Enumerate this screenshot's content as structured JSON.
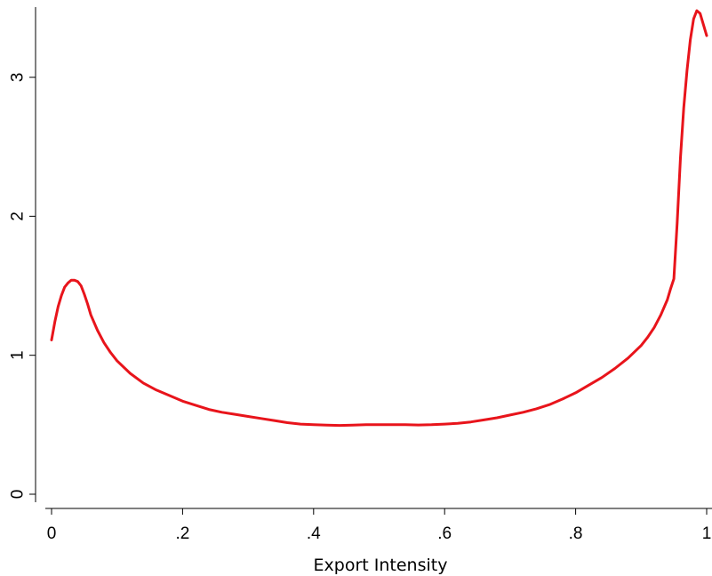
{
  "chart_data": {
    "type": "line",
    "title": "",
    "xlabel": "Export Intensity",
    "ylabel": "",
    "xlim": [
      0,
      1
    ],
    "ylim": [
      0,
      3.5
    ],
    "x_ticks": [
      {
        "value": 0,
        "label": "0"
      },
      {
        "value": 0.2,
        "label": ".2"
      },
      {
        "value": 0.4,
        "label": ".4"
      },
      {
        "value": 0.6,
        "label": ".6"
      },
      {
        "value": 0.8,
        "label": ".8"
      },
      {
        "value": 1,
        "label": "1"
      }
    ],
    "y_ticks": [
      {
        "value": 0,
        "label": "0"
      },
      {
        "value": 1,
        "label": "1"
      },
      {
        "value": 2,
        "label": "2"
      },
      {
        "value": 3,
        "label": "3"
      }
    ],
    "grid": false,
    "legend": "none",
    "series_color": "#e8141b",
    "series": [
      {
        "x": [
          0,
          0.005,
          0.01,
          0.015,
          0.02,
          0.025,
          0.03,
          0.035,
          0.04,
          0.045,
          0.05,
          0.055,
          0.06,
          0.07,
          0.08,
          0.09,
          0.1,
          0.12,
          0.14,
          0.16,
          0.18,
          0.2,
          0.22,
          0.24,
          0.26,
          0.28,
          0.3,
          0.32,
          0.34,
          0.36,
          0.38,
          0.4,
          0.42,
          0.44,
          0.46,
          0.48,
          0.5,
          0.52,
          0.54,
          0.56,
          0.58,
          0.6,
          0.62,
          0.64,
          0.66,
          0.68,
          0.7,
          0.72,
          0.74,
          0.76,
          0.78,
          0.8,
          0.82,
          0.84,
          0.86,
          0.88,
          0.9,
          0.91,
          0.92,
          0.93,
          0.94,
          0.945,
          0.95,
          0.955,
          0.96,
          0.965,
          0.97,
          0.975,
          0.98,
          0.985,
          0.99,
          0.995,
          1
        ],
        "y": [
          1.11,
          1.24,
          1.35,
          1.43,
          1.49,
          1.52,
          1.54,
          1.54,
          1.53,
          1.5,
          1.44,
          1.37,
          1.29,
          1.18,
          1.09,
          1.02,
          0.96,
          0.87,
          0.8,
          0.75,
          0.71,
          0.67,
          0.64,
          0.61,
          0.59,
          0.575,
          0.56,
          0.545,
          0.53,
          0.515,
          0.505,
          0.5,
          0.497,
          0.495,
          0.497,
          0.5,
          0.5,
          0.5,
          0.5,
          0.498,
          0.5,
          0.505,
          0.51,
          0.52,
          0.535,
          0.55,
          0.57,
          0.59,
          0.615,
          0.645,
          0.685,
          0.73,
          0.785,
          0.84,
          0.905,
          0.98,
          1.07,
          1.13,
          1.2,
          1.29,
          1.4,
          1.48,
          1.55,
          1.95,
          2.42,
          2.78,
          3.05,
          3.27,
          3.42,
          3.48,
          3.46,
          3.38,
          3.3
        ]
      }
    ]
  }
}
